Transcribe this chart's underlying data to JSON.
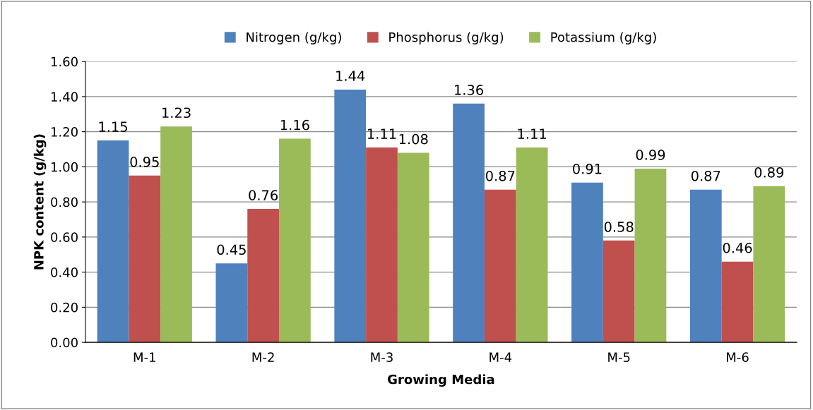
{
  "chart_data": {
    "type": "bar",
    "xlabel": "Growing Media",
    "ylabel": "NPK content (g/kg)",
    "categories": [
      "M-1",
      "M-2",
      "M-3",
      "M-4",
      "M-5",
      "M-6"
    ],
    "series": [
      {
        "name": "Nitrogen (g/kg)",
        "color": "#4f81bd",
        "values": [
          1.15,
          0.45,
          1.44,
          1.36,
          0.91,
          0.87
        ]
      },
      {
        "name": "Phosphorus (g/kg)",
        "color": "#c0504d",
        "values": [
          0.95,
          0.76,
          1.11,
          0.87,
          0.58,
          0.46
        ]
      },
      {
        "name": "Potassium (g/kg)",
        "color": "#9bbb59",
        "values": [
          1.23,
          1.16,
          1.08,
          1.11,
          0.99,
          0.89
        ]
      }
    ],
    "ylim": [
      0,
      1.6
    ],
    "yticks": [
      {
        "value": 0,
        "label": "0.00"
      },
      {
        "value": 0.2,
        "label": "0.20"
      },
      {
        "value": 0.4,
        "label": "0.40"
      },
      {
        "value": 0.6,
        "label": "0.60"
      },
      {
        "value": 0.8,
        "label": "0.80"
      },
      {
        "value": 1.0,
        "label": "1.00"
      },
      {
        "value": 1.2,
        "label": "1.20"
      },
      {
        "value": 1.4,
        "label": "1.40"
      },
      {
        "value": 1.6,
        "label": "1.60"
      }
    ],
    "grid": "y",
    "legend": "top",
    "data_labels": true
  }
}
